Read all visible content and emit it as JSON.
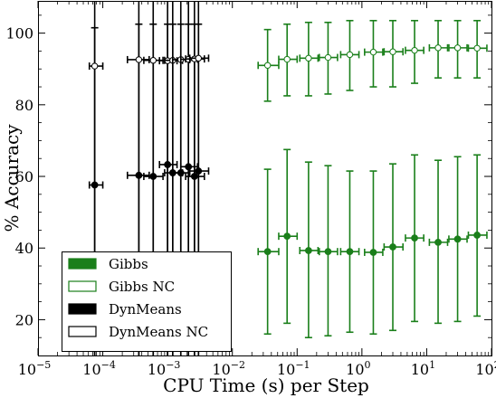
{
  "chart_data": {
    "type": "scatter",
    "xlabel": "CPU Time (s) per Step",
    "ylabel": "% Accuracy",
    "xscale": "log",
    "xlim": [
      1e-05,
      100
    ],
    "ylim": [
      10,
      109
    ],
    "x_ticks": [
      {
        "value": 1e-05,
        "base": "10",
        "exp": "−5"
      },
      {
        "value": 0.0001,
        "base": "10",
        "exp": "−4"
      },
      {
        "value": 0.001,
        "base": "10",
        "exp": "−3"
      },
      {
        "value": 0.01,
        "base": "10",
        "exp": "−2"
      },
      {
        "value": 0.1,
        "base": "10",
        "exp": "−1"
      },
      {
        "value": 1,
        "base": "10",
        "exp": "0"
      },
      {
        "value": 10,
        "base": "10",
        "exp": "1"
      },
      {
        "value": 100,
        "base": "10",
        "exp": "2"
      }
    ],
    "y_ticks": [
      {
        "value": 20,
        "label": "20"
      },
      {
        "value": 40,
        "label": "40"
      },
      {
        "value": 60,
        "label": "60"
      },
      {
        "value": 80,
        "label": "80"
      },
      {
        "value": 100,
        "label": "100"
      }
    ],
    "grid": false,
    "legend": "bottom-left",
    "series": [
      {
        "name": "Gibbs",
        "color": "#1a7f1a",
        "marker": "filled",
        "points": [
          {
            "x": 0.035,
            "y": 39.0,
            "x_lo": 0.025,
            "x_hi": 0.052,
            "y_lo": 16.0,
            "y_hi": 62.0
          },
          {
            "x": 0.07,
            "y": 43.3,
            "x_lo": 0.052,
            "x_hi": 0.1,
            "y_lo": 19.0,
            "y_hi": 67.5
          },
          {
            "x": 0.15,
            "y": 39.3,
            "x_lo": 0.11,
            "x_hi": 0.21,
            "y_lo": 15.0,
            "y_hi": 64.0
          },
          {
            "x": 0.3,
            "y": 39.0,
            "x_lo": 0.22,
            "x_hi": 0.42,
            "y_lo": 15.5,
            "y_hi": 63.0
          },
          {
            "x": 0.65,
            "y": 39.0,
            "x_lo": 0.47,
            "x_hi": 0.9,
            "y_lo": 16.5,
            "y_hi": 61.5
          },
          {
            "x": 1.5,
            "y": 38.8,
            "x_lo": 1.1,
            "x_hi": 2.1,
            "y_lo": 16.0,
            "y_hi": 61.5
          },
          {
            "x": 3.0,
            "y": 40.3,
            "x_lo": 2.2,
            "x_hi": 4.3,
            "y_lo": 17.0,
            "y_hi": 63.5
          },
          {
            "x": 6.5,
            "y": 42.8,
            "x_lo": 4.7,
            "x_hi": 9.0,
            "y_lo": 19.5,
            "y_hi": 66.0
          },
          {
            "x": 15,
            "y": 41.6,
            "x_lo": 11,
            "x_hi": 21,
            "y_lo": 19.0,
            "y_hi": 64.5
          },
          {
            "x": 30,
            "y": 42.5,
            "x_lo": 22,
            "x_hi": 42,
            "y_lo": 19.5,
            "y_hi": 65.5
          },
          {
            "x": 60,
            "y": 43.6,
            "x_lo": 44,
            "x_hi": 85,
            "y_lo": 21.0,
            "y_hi": 66.0
          }
        ]
      },
      {
        "name": "Gibbs NC",
        "color": "#1a7f1a",
        "marker": "open",
        "points": [
          {
            "x": 0.035,
            "y": 91.0,
            "x_lo": 0.025,
            "x_hi": 0.052,
            "y_lo": 81.0,
            "y_hi": 101.0
          },
          {
            "x": 0.07,
            "y": 92.7,
            "x_lo": 0.052,
            "x_hi": 0.1,
            "y_lo": 82.5,
            "y_hi": 102.5
          },
          {
            "x": 0.15,
            "y": 93.0,
            "x_lo": 0.11,
            "x_hi": 0.21,
            "y_lo": 82.5,
            "y_hi": 103.0
          },
          {
            "x": 0.3,
            "y": 93.2,
            "x_lo": 0.22,
            "x_hi": 0.42,
            "y_lo": 83.0,
            "y_hi": 103.0
          },
          {
            "x": 0.65,
            "y": 94.0,
            "x_lo": 0.47,
            "x_hi": 0.9,
            "y_lo": 84.0,
            "y_hi": 103.5
          },
          {
            "x": 1.5,
            "y": 94.7,
            "x_lo": 1.1,
            "x_hi": 2.1,
            "y_lo": 85.0,
            "y_hi": 103.5
          },
          {
            "x": 3.0,
            "y": 94.8,
            "x_lo": 2.2,
            "x_hi": 4.3,
            "y_lo": 85.0,
            "y_hi": 103.5
          },
          {
            "x": 6.5,
            "y": 95.2,
            "x_lo": 4.7,
            "x_hi": 9.0,
            "y_lo": 86.0,
            "y_hi": 103.5
          },
          {
            "x": 15,
            "y": 95.9,
            "x_lo": 11,
            "x_hi": 21,
            "y_lo": 87.5,
            "y_hi": 103.5
          },
          {
            "x": 30,
            "y": 95.9,
            "x_lo": 22,
            "x_hi": 42,
            "y_lo": 87.5,
            "y_hi": 103.5
          },
          {
            "x": 60,
            "y": 95.8,
            "x_lo": 44,
            "x_hi": 85,
            "y_lo": 87.5,
            "y_hi": 103.5
          }
        ]
      },
      {
        "name": "DynMeans",
        "color": "#000000",
        "marker": "filled",
        "points": [
          {
            "x": 7.5e-05,
            "y": 57.6,
            "x_lo": 6.2e-05,
            "x_hi": 0.0001,
            "y_lo": 10,
            "y_hi": 109
          },
          {
            "x": 0.00036,
            "y": 60.3,
            "x_lo": 0.00024,
            "x_hi": 0.00052,
            "y_lo": 10,
            "y_hi": 109
          },
          {
            "x": 0.0006,
            "y": 60.0,
            "x_lo": 0.00043,
            "x_hi": 0.00085,
            "y_lo": 10,
            "y_hi": 109
          },
          {
            "x": 0.001,
            "y": 63.3,
            "x_lo": 0.00075,
            "x_hi": 0.0014,
            "y_lo": 10,
            "y_hi": 109
          },
          {
            "x": 0.0012,
            "y": 61.0,
            "x_lo": 0.0009,
            "x_hi": 0.0017,
            "y_lo": 10,
            "y_hi": 109
          },
          {
            "x": 0.0016,
            "y": 61.0,
            "x_lo": 0.0012,
            "x_hi": 0.0022,
            "y_lo": 10,
            "y_hi": 109
          },
          {
            "x": 0.0021,
            "y": 62.7,
            "x_lo": 0.0016,
            "x_hi": 0.0029,
            "y_lo": 10,
            "y_hi": 109
          },
          {
            "x": 0.0026,
            "y": 60.0,
            "x_lo": 0.0019,
            "x_hi": 0.0037,
            "y_lo": 10,
            "y_hi": 109
          },
          {
            "x": 0.003,
            "y": 61.5,
            "x_lo": 0.0022,
            "x_hi": 0.0043,
            "y_lo": 10,
            "y_hi": 109
          }
        ]
      },
      {
        "name": "DynMeans NC",
        "color": "#000000",
        "marker": "open",
        "points": [
          {
            "x": 7.5e-05,
            "y": 90.8,
            "x_lo": 6.2e-05,
            "x_hi": 0.0001,
            "y_lo": 10,
            "y_hi": 101.5
          },
          {
            "x": 0.00036,
            "y": 92.6,
            "x_lo": 0.00024,
            "x_hi": 0.00052,
            "y_lo": 10,
            "y_hi": 102.5
          },
          {
            "x": 0.0006,
            "y": 92.4,
            "x_lo": 0.00043,
            "x_hi": 0.00085,
            "y_lo": 10,
            "y_hi": 102.5
          },
          {
            "x": 0.001,
            "y": 92.3,
            "x_lo": 0.00075,
            "x_hi": 0.0014,
            "y_lo": 10,
            "y_hi": 102.5
          },
          {
            "x": 0.0012,
            "y": 92.4,
            "x_lo": 0.0009,
            "x_hi": 0.0017,
            "y_lo": 10,
            "y_hi": 102.5
          },
          {
            "x": 0.0016,
            "y": 92.6,
            "x_lo": 0.0012,
            "x_hi": 0.0022,
            "y_lo": 10,
            "y_hi": 102.5
          },
          {
            "x": 0.0021,
            "y": 92.7,
            "x_lo": 0.0016,
            "x_hi": 0.0029,
            "y_lo": 10,
            "y_hi": 102.5
          },
          {
            "x": 0.0026,
            "y": 92.8,
            "x_lo": 0.0019,
            "x_hi": 0.0037,
            "y_lo": 10,
            "y_hi": 102.5
          },
          {
            "x": 0.003,
            "y": 93.0,
            "x_lo": 0.0022,
            "x_hi": 0.0043,
            "y_lo": 10,
            "y_hi": 102.5
          }
        ]
      }
    ]
  }
}
